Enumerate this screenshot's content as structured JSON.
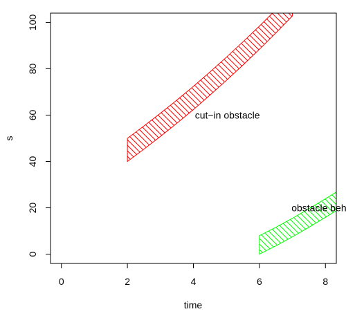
{
  "chart_data": {
    "type": "area",
    "title": "",
    "xlabel": "time",
    "ylabel": "s",
    "xlim": [
      -0.33,
      8.33
    ],
    "ylim": [
      -4,
      104
    ],
    "xticks": [
      0,
      2,
      4,
      6,
      8
    ],
    "yticks": [
      0,
      20,
      40,
      60,
      80,
      100
    ],
    "xtick_labels": [
      "0",
      "2",
      "4",
      "6",
      "8"
    ],
    "ytick_labels": [
      "0",
      "20",
      "40",
      "60",
      "80",
      "100"
    ],
    "grid": false,
    "series": [
      {
        "color": "#ff0000",
        "fill": "hatched",
        "time": [
          2,
          2.5,
          3,
          3.5,
          4,
          4.5,
          5,
          5.5,
          6,
          6.5,
          7
        ],
        "lower": [
          40,
          45.3,
          50.8,
          56.5,
          62.4,
          68.6,
          75,
          81.6,
          88.4,
          95.5,
          102.8
        ],
        "upper": [
          50,
          55.3,
          60.8,
          66.5,
          72.4,
          78.6,
          85,
          91.6,
          98.4,
          105.5,
          112.8
        ]
      },
      {
        "color": "#00ff00",
        "fill": "hatched",
        "time": [
          6,
          6.5,
          7,
          7.5,
          8,
          8.33
        ],
        "lower": [
          0,
          3.6,
          7.5,
          11.6,
          15.9,
          18.8
        ],
        "upper": [
          8,
          11.6,
          15.5,
          19.6,
          23.9,
          26.8
        ]
      }
    ],
    "annotations": [
      {
        "text": "cut−in obstacle",
        "x": 5.03,
        "y": 60
      },
      {
        "text": "obstacle behind",
        "x": 8.0,
        "y": 20
      }
    ]
  }
}
